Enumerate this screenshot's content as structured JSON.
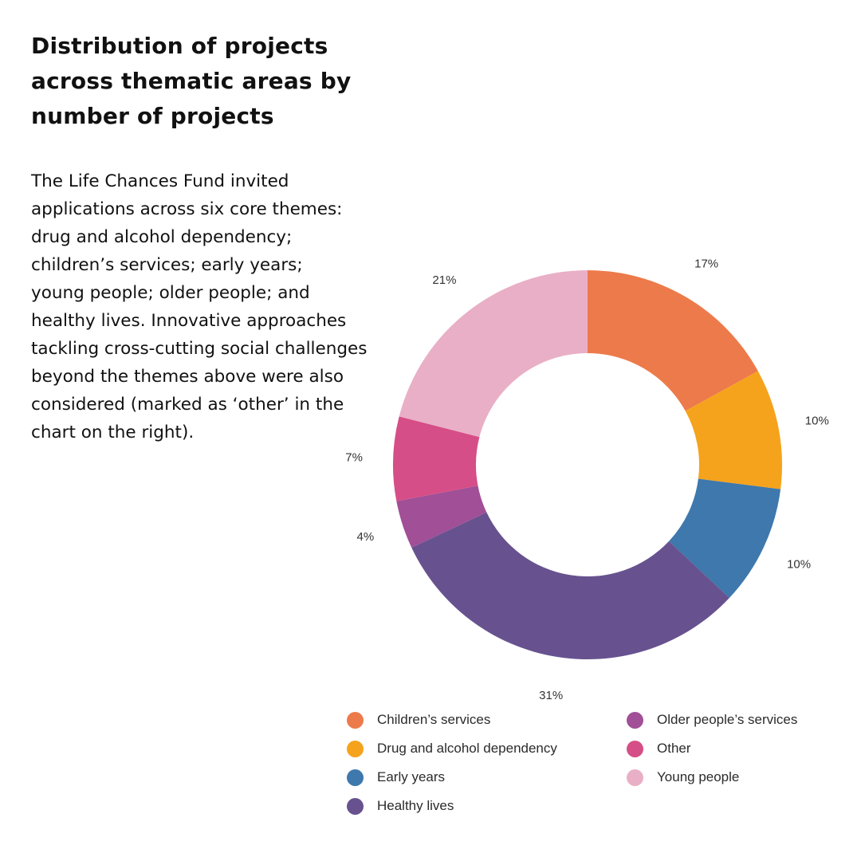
{
  "title_lines": [
    "Distribution of projects",
    "across thematic areas by",
    "number of projects"
  ],
  "description_lines": [
    "The Life Chances Fund invited",
    "applications across six core themes:",
    "drug and alcohol dependency;",
    "children’s services; early years;",
    "young people; older people; and",
    "healthy lives. Innovative approaches",
    "tackling cross-cutting social challenges",
    "beyond the themes above were also",
    "considered (marked as ‘other’ in the",
    "chart on the right)."
  ],
  "chart_data": {
    "type": "pie",
    "variant": "donut",
    "title": "Distribution of projects across thematic areas by number of projects",
    "order": "clockwise from top",
    "slices": [
      {
        "label": "Children’s services",
        "value": 17,
        "value_label": "17%",
        "color": "#ED7A4A"
      },
      {
        "label": "Drug and alcohol dependency",
        "value": 10,
        "value_label": "10%",
        "color": "#F5A31C"
      },
      {
        "label": "Early years",
        "value": 10,
        "value_label": "10%",
        "color": "#3E78AC"
      },
      {
        "label": "Healthy lives",
        "value": 31,
        "value_label": "31%",
        "color": "#67528F"
      },
      {
        "label": "Older people’s services",
        "value": 4,
        "value_label": "4%",
        "color": "#A14F96"
      },
      {
        "label": "Other",
        "value": 7,
        "value_label": "7%",
        "color": "#D64E87"
      },
      {
        "label": "Young people",
        "value": 21,
        "value_label": "21%",
        "color": "#E9AFC6"
      }
    ],
    "legend_position": "bottom"
  }
}
